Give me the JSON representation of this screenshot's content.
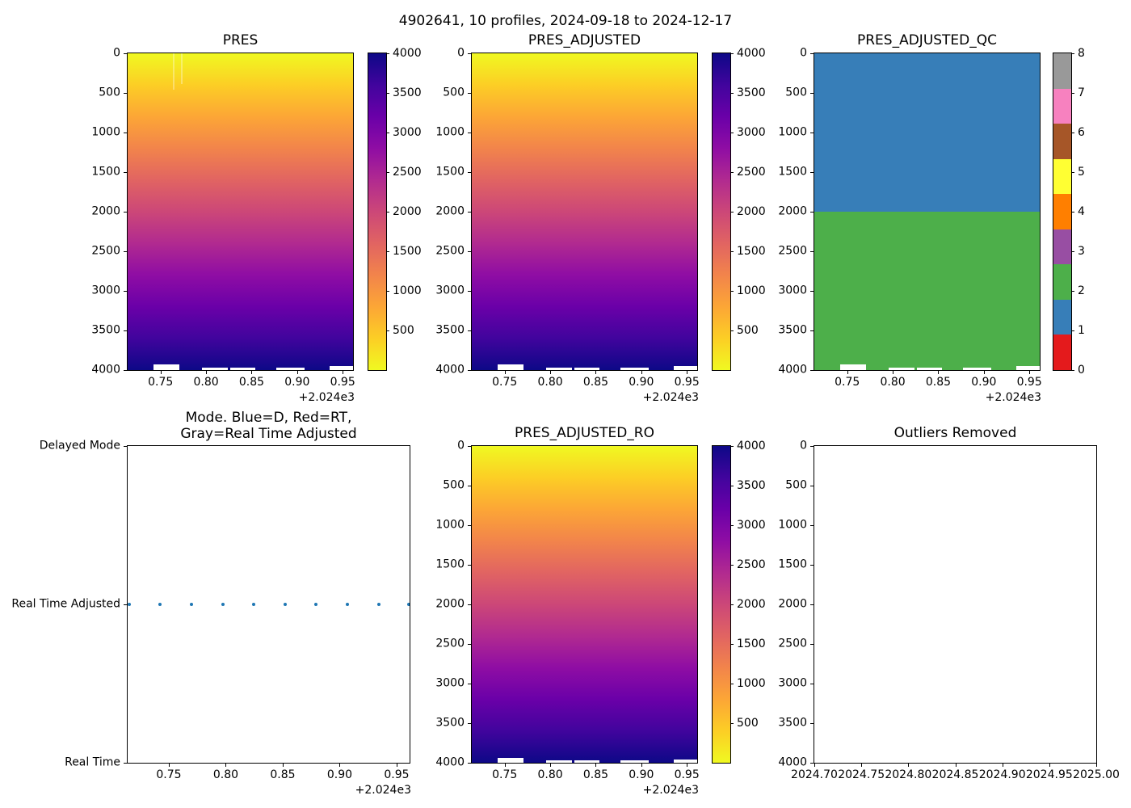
{
  "figure": {
    "title": "4902641, 10 profiles, 2024-09-18 to 2024-12-17",
    "background": "#ffffff",
    "n_profiles": 10,
    "date_range": [
      "2024-09-18",
      "2024-12-17"
    ],
    "platform_id": "4902641"
  },
  "chart_data": [
    {
      "id": "pres",
      "type": "heatmap",
      "title": "PRES",
      "colormap": "plasma_r",
      "x_range_decimal_year": [
        2024.714,
        2024.961
      ],
      "y_range_dbar": [
        0,
        4000
      ],
      "value_range_dbar": [
        0,
        4000
      ],
      "x_offset_label": "+2.024e3",
      "xticks": [
        {
          "label": "0.75",
          "f": 0.146
        },
        {
          "label": "0.80",
          "f": 0.348
        },
        {
          "label": "0.85",
          "f": 0.55
        },
        {
          "label": "0.90",
          "f": 0.752
        },
        {
          "label": "0.95",
          "f": 0.954
        }
      ],
      "yticks": [
        {
          "label": "0",
          "f": 0.0
        },
        {
          "label": "500",
          "f": 0.125
        },
        {
          "label": "1000",
          "f": 0.25
        },
        {
          "label": "1500",
          "f": 0.375
        },
        {
          "label": "2000",
          "f": 0.5
        },
        {
          "label": "2500",
          "f": 0.625
        },
        {
          "label": "3000",
          "f": 0.75
        },
        {
          "label": "3500",
          "f": 0.875
        },
        {
          "label": "4000",
          "f": 1.0
        }
      ],
      "fill_gradient_top_to_bottom": [
        "#f0f921",
        "#fcce25",
        "#fca636",
        "#f2844b",
        "#e16462",
        "#cc4778",
        "#b12a90",
        "#8f0da4",
        "#6a00a8",
        "#41049d",
        "#0d0887"
      ],
      "bottom_gaps": [
        {
          "x": 0.115,
          "w": 0.115,
          "h": 7
        },
        {
          "x": 0.33,
          "w": 0.115,
          "h": 3
        },
        {
          "x": 0.455,
          "w": 0.11,
          "h": 3
        },
        {
          "x": 0.66,
          "w": 0.125,
          "h": 3
        },
        {
          "x": 0.895,
          "w": 0.105,
          "h": 5
        }
      ],
      "top_streaks": [
        {
          "x": 0.2,
          "h": 45
        },
        {
          "x": 0.235,
          "h": 38
        }
      ],
      "colorbar": {
        "gradient_top_to_bottom": [
          "#0d0887",
          "#41049d",
          "#6a00a8",
          "#8f0da4",
          "#b12a90",
          "#cc4778",
          "#e16462",
          "#f2844b",
          "#fca636",
          "#fcce25",
          "#f0f921"
        ],
        "ticks": [
          {
            "label": "4000",
            "f": 0.0
          },
          {
            "label": "3500",
            "f": 0.125
          },
          {
            "label": "3000",
            "f": 0.25
          },
          {
            "label": "2500",
            "f": 0.375
          },
          {
            "label": "2000",
            "f": 0.5
          },
          {
            "label": "1500",
            "f": 0.625
          },
          {
            "label": "1000",
            "f": 0.75
          },
          {
            "label": "500",
            "f": 0.875
          }
        ]
      }
    },
    {
      "id": "pres_adjusted",
      "type": "heatmap",
      "title": "PRES_ADJUSTED",
      "colormap": "plasma_r",
      "x_range_decimal_year": [
        2024.714,
        2024.961
      ],
      "y_range_dbar": [
        0,
        4000
      ],
      "value_range_dbar": [
        0,
        4000
      ],
      "x_offset_label": "+2.024e3",
      "xticks": [
        {
          "label": "0.75",
          "f": 0.146
        },
        {
          "label": "0.80",
          "f": 0.348
        },
        {
          "label": "0.85",
          "f": 0.55
        },
        {
          "label": "0.90",
          "f": 0.752
        },
        {
          "label": "0.95",
          "f": 0.954
        }
      ],
      "yticks": [
        {
          "label": "0",
          "f": 0.0
        },
        {
          "label": "500",
          "f": 0.125
        },
        {
          "label": "1000",
          "f": 0.25
        },
        {
          "label": "1500",
          "f": 0.375
        },
        {
          "label": "2000",
          "f": 0.5
        },
        {
          "label": "2500",
          "f": 0.625
        },
        {
          "label": "3000",
          "f": 0.75
        },
        {
          "label": "3500",
          "f": 0.875
        },
        {
          "label": "4000",
          "f": 1.0
        }
      ],
      "fill_gradient_top_to_bottom": [
        "#f0f921",
        "#fcce25",
        "#fca636",
        "#f2844b",
        "#e16462",
        "#cc4778",
        "#b12a90",
        "#8f0da4",
        "#6a00a8",
        "#41049d",
        "#0d0887"
      ],
      "bottom_gaps": [
        {
          "x": 0.115,
          "w": 0.115,
          "h": 7
        },
        {
          "x": 0.33,
          "w": 0.115,
          "h": 3
        },
        {
          "x": 0.455,
          "w": 0.11,
          "h": 3
        },
        {
          "x": 0.66,
          "w": 0.125,
          "h": 3
        },
        {
          "x": 0.895,
          "w": 0.105,
          "h": 5
        }
      ],
      "colorbar": {
        "gradient_top_to_bottom": [
          "#0d0887",
          "#41049d",
          "#6a00a8",
          "#8f0da4",
          "#b12a90",
          "#cc4778",
          "#e16462",
          "#f2844b",
          "#fca636",
          "#fcce25",
          "#f0f921"
        ],
        "ticks": [
          {
            "label": "4000",
            "f": 0.0
          },
          {
            "label": "3500",
            "f": 0.125
          },
          {
            "label": "3000",
            "f": 0.25
          },
          {
            "label": "2500",
            "f": 0.375
          },
          {
            "label": "2000",
            "f": 0.5
          },
          {
            "label": "1500",
            "f": 0.625
          },
          {
            "label": "1000",
            "f": 0.75
          },
          {
            "label": "500",
            "f": 0.875
          }
        ]
      }
    },
    {
      "id": "pres_adjusted_qc",
      "type": "qc",
      "title": "PRES_ADJUSTED_QC",
      "x_range_decimal_year": [
        2024.714,
        2024.961
      ],
      "y_range_dbar": [
        0,
        4000
      ],
      "x_offset_label": "+2.024e3",
      "xticks": [
        {
          "label": "0.75",
          "f": 0.146
        },
        {
          "label": "0.80",
          "f": 0.348
        },
        {
          "label": "0.85",
          "f": 0.55
        },
        {
          "label": "0.90",
          "f": 0.752
        },
        {
          "label": "0.95",
          "f": 0.954
        }
      ],
      "yticks": [
        {
          "label": "0",
          "f": 0.0
        },
        {
          "label": "500",
          "f": 0.125
        },
        {
          "label": "1000",
          "f": 0.25
        },
        {
          "label": "1500",
          "f": 0.375
        },
        {
          "label": "2000",
          "f": 0.5
        },
        {
          "label": "2500",
          "f": 0.625
        },
        {
          "label": "3000",
          "f": 0.75
        },
        {
          "label": "3500",
          "f": 0.875
        },
        {
          "label": "4000",
          "f": 1.0
        }
      ],
      "regions": [
        {
          "qc_flag": 1,
          "color": "#377eb8",
          "f0": 0.0,
          "f1": 0.5,
          "depth_from_dbar": 0,
          "depth_to_dbar": 2000
        },
        {
          "qc_flag": 2,
          "color": "#4daf4a",
          "f0": 0.5,
          "f1": 1.0,
          "depth_from_dbar": 2000,
          "depth_to_dbar": 4000
        }
      ],
      "bottom_gaps": [
        {
          "x": 0.115,
          "w": 0.115,
          "h": 7
        },
        {
          "x": 0.33,
          "w": 0.115,
          "h": 3
        },
        {
          "x": 0.455,
          "w": 0.11,
          "h": 3
        },
        {
          "x": 0.66,
          "w": 0.125,
          "h": 3
        },
        {
          "x": 0.895,
          "w": 0.105,
          "h": 5
        }
      ],
      "colorbar": {
        "segments_top_to_bottom": [
          "#999999",
          "#f781bf",
          "#a65628",
          "#ffff33",
          "#ff7f00",
          "#984ea3",
          "#4daf4a",
          "#377eb8",
          "#e41a1c"
        ],
        "ticks": [
          {
            "label": "8",
            "f": 0.0
          },
          {
            "label": "7",
            "f": 0.125
          },
          {
            "label": "6",
            "f": 0.25
          },
          {
            "label": "5",
            "f": 0.375
          },
          {
            "label": "4",
            "f": 0.5
          },
          {
            "label": "3",
            "f": 0.625
          },
          {
            "label": "2",
            "f": 0.75
          },
          {
            "label": "1",
            "f": 0.875
          },
          {
            "label": "0",
            "f": 1.0
          }
        ]
      }
    },
    {
      "id": "mode",
      "type": "scatter",
      "title_lines": [
        "Mode. Blue=D, Red=RT,",
        "Gray=Real Time Adjusted"
      ],
      "x_range_decimal_year": [
        2024.714,
        2024.961
      ],
      "x_offset_label": "+2.024e3",
      "dot_color": "#1f77b4",
      "xticks": [
        {
          "label": "0.75",
          "f": 0.146
        },
        {
          "label": "0.80",
          "f": 0.348
        },
        {
          "label": "0.85",
          "f": 0.55
        },
        {
          "label": "0.90",
          "f": 0.752
        },
        {
          "label": "0.95",
          "f": 0.954
        }
      ],
      "yticks": [
        {
          "label": "Delayed Mode",
          "f": 0.0
        },
        {
          "label": "Real Time Adjusted",
          "f": 0.5
        },
        {
          "label": "Real Time",
          "f": 1.0
        }
      ],
      "points": [
        {
          "x": 0.006,
          "y": 0.5,
          "decimal_year": 2024.716,
          "mode": "Real Time Adjusted"
        },
        {
          "x": 0.116,
          "y": 0.5,
          "decimal_year": 2024.743,
          "mode": "Real Time Adjusted"
        },
        {
          "x": 0.227,
          "y": 0.5,
          "decimal_year": 2024.77,
          "mode": "Real Time Adjusted"
        },
        {
          "x": 0.337,
          "y": 0.5,
          "decimal_year": 2024.798,
          "mode": "Real Time Adjusted"
        },
        {
          "x": 0.448,
          "y": 0.5,
          "decimal_year": 2024.825,
          "mode": "Real Time Adjusted"
        },
        {
          "x": 0.558,
          "y": 0.5,
          "decimal_year": 2024.852,
          "mode": "Real Time Adjusted"
        },
        {
          "x": 0.669,
          "y": 0.5,
          "decimal_year": 2024.88,
          "mode": "Real Time Adjusted"
        },
        {
          "x": 0.779,
          "y": 0.5,
          "decimal_year": 2024.907,
          "mode": "Real Time Adjusted"
        },
        {
          "x": 0.89,
          "y": 0.5,
          "decimal_year": 2024.934,
          "mode": "Real Time Adjusted"
        },
        {
          "x": 0.997,
          "y": 0.5,
          "decimal_year": 2024.961,
          "mode": "Real Time Adjusted"
        }
      ]
    },
    {
      "id": "pres_adjusted_ro",
      "type": "heatmap",
      "title": "PRES_ADJUSTED_RO",
      "colormap": "plasma_r",
      "x_range_decimal_year": [
        2024.714,
        2024.961
      ],
      "y_range_dbar": [
        0,
        4000
      ],
      "value_range_dbar": [
        0,
        4000
      ],
      "x_offset_label": "+2.024e3",
      "xticks": [
        {
          "label": "0.75",
          "f": 0.146
        },
        {
          "label": "0.80",
          "f": 0.348
        },
        {
          "label": "0.85",
          "f": 0.55
        },
        {
          "label": "0.90",
          "f": 0.752
        },
        {
          "label": "0.95",
          "f": 0.954
        }
      ],
      "yticks": [
        {
          "label": "0",
          "f": 0.0
        },
        {
          "label": "500",
          "f": 0.125
        },
        {
          "label": "1000",
          "f": 0.25
        },
        {
          "label": "1500",
          "f": 0.375
        },
        {
          "label": "2000",
          "f": 0.5
        },
        {
          "label": "2500",
          "f": 0.625
        },
        {
          "label": "3000",
          "f": 0.75
        },
        {
          "label": "3500",
          "f": 0.875
        },
        {
          "label": "4000",
          "f": 1.0
        }
      ],
      "fill_gradient_top_to_bottom": [
        "#f0f921",
        "#fcce25",
        "#fca636",
        "#f2844b",
        "#e16462",
        "#cc4778",
        "#b12a90",
        "#8f0da4",
        "#6a00a8",
        "#41049d",
        "#0d0887"
      ],
      "bottom_gaps": [
        {
          "x": 0.115,
          "w": 0.115,
          "h": 6
        },
        {
          "x": 0.33,
          "w": 0.115,
          "h": 3
        },
        {
          "x": 0.455,
          "w": 0.11,
          "h": 3
        },
        {
          "x": 0.66,
          "w": 0.125,
          "h": 3
        },
        {
          "x": 0.895,
          "w": 0.105,
          "h": 4
        }
      ],
      "colorbar": {
        "gradient_top_to_bottom": [
          "#0d0887",
          "#41049d",
          "#6a00a8",
          "#8f0da4",
          "#b12a90",
          "#cc4778",
          "#e16462",
          "#f2844b",
          "#fca636",
          "#fcce25",
          "#f0f921"
        ],
        "ticks": [
          {
            "label": "4000",
            "f": 0.0
          },
          {
            "label": "3500",
            "f": 0.125
          },
          {
            "label": "3000",
            "f": 0.25
          },
          {
            "label": "2500",
            "f": 0.375
          },
          {
            "label": "2000",
            "f": 0.5
          },
          {
            "label": "1500",
            "f": 0.625
          },
          {
            "label": "1000",
            "f": 0.75
          },
          {
            "label": "500",
            "f": 0.875
          }
        ]
      }
    },
    {
      "id": "outliers_removed",
      "type": "empty",
      "title": "Outliers Removed",
      "x_range_decimal_year": [
        2024.7,
        2025.0
      ],
      "y_range_dbar": [
        0,
        4000
      ],
      "xticks": [
        {
          "label": "2024.70",
          "f": 0.0
        },
        {
          "label": "2024.75",
          "f": 0.1667
        },
        {
          "label": "2024.80",
          "f": 0.3333
        },
        {
          "label": "2024.85",
          "f": 0.5
        },
        {
          "label": "2024.90",
          "f": 0.6667
        },
        {
          "label": "2024.95",
          "f": 0.8333
        },
        {
          "label": "2025.00",
          "f": 1.0
        }
      ],
      "yticks": [
        {
          "label": "0",
          "f": 0.0
        },
        {
          "label": "500",
          "f": 0.125
        },
        {
          "label": "1000",
          "f": 0.25
        },
        {
          "label": "1500",
          "f": 0.375
        },
        {
          "label": "2000",
          "f": 0.5
        },
        {
          "label": "2500",
          "f": 0.625
        },
        {
          "label": "3000",
          "f": 0.75
        },
        {
          "label": "3500",
          "f": 0.875
        },
        {
          "label": "4000",
          "f": 1.0
        }
      ]
    }
  ]
}
